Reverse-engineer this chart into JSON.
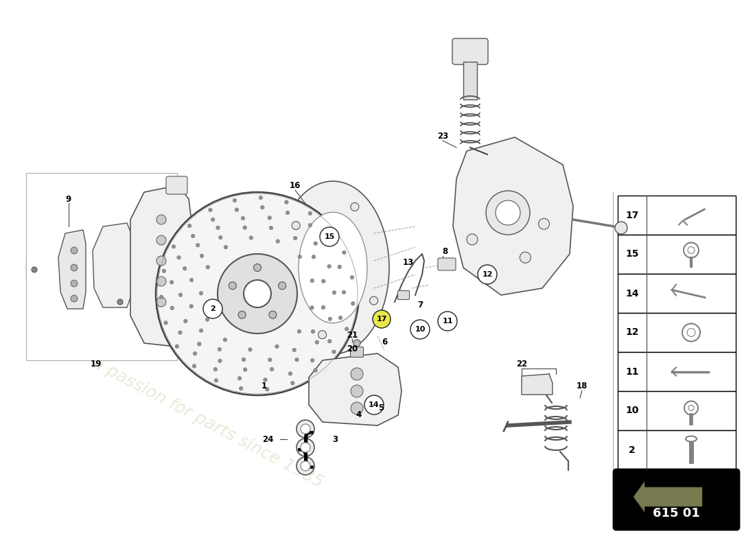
{
  "bg_color": "#ffffff",
  "watermark_color": "#c8c8a0",
  "watermark_alpha": 0.4,
  "part_numbers_right": [
    17,
    15,
    14,
    12,
    11,
    10,
    2
  ],
  "part_number_box": "615 01",
  "line_color": "#444444",
  "circle_label_ec": "#222222",
  "parts_gray": "#888888",
  "light_gray": "#e8e8e8",
  "mid_gray": "#cccccc",
  "dark_gray": "#555555",
  "yellow_fill": "#e8e84a"
}
